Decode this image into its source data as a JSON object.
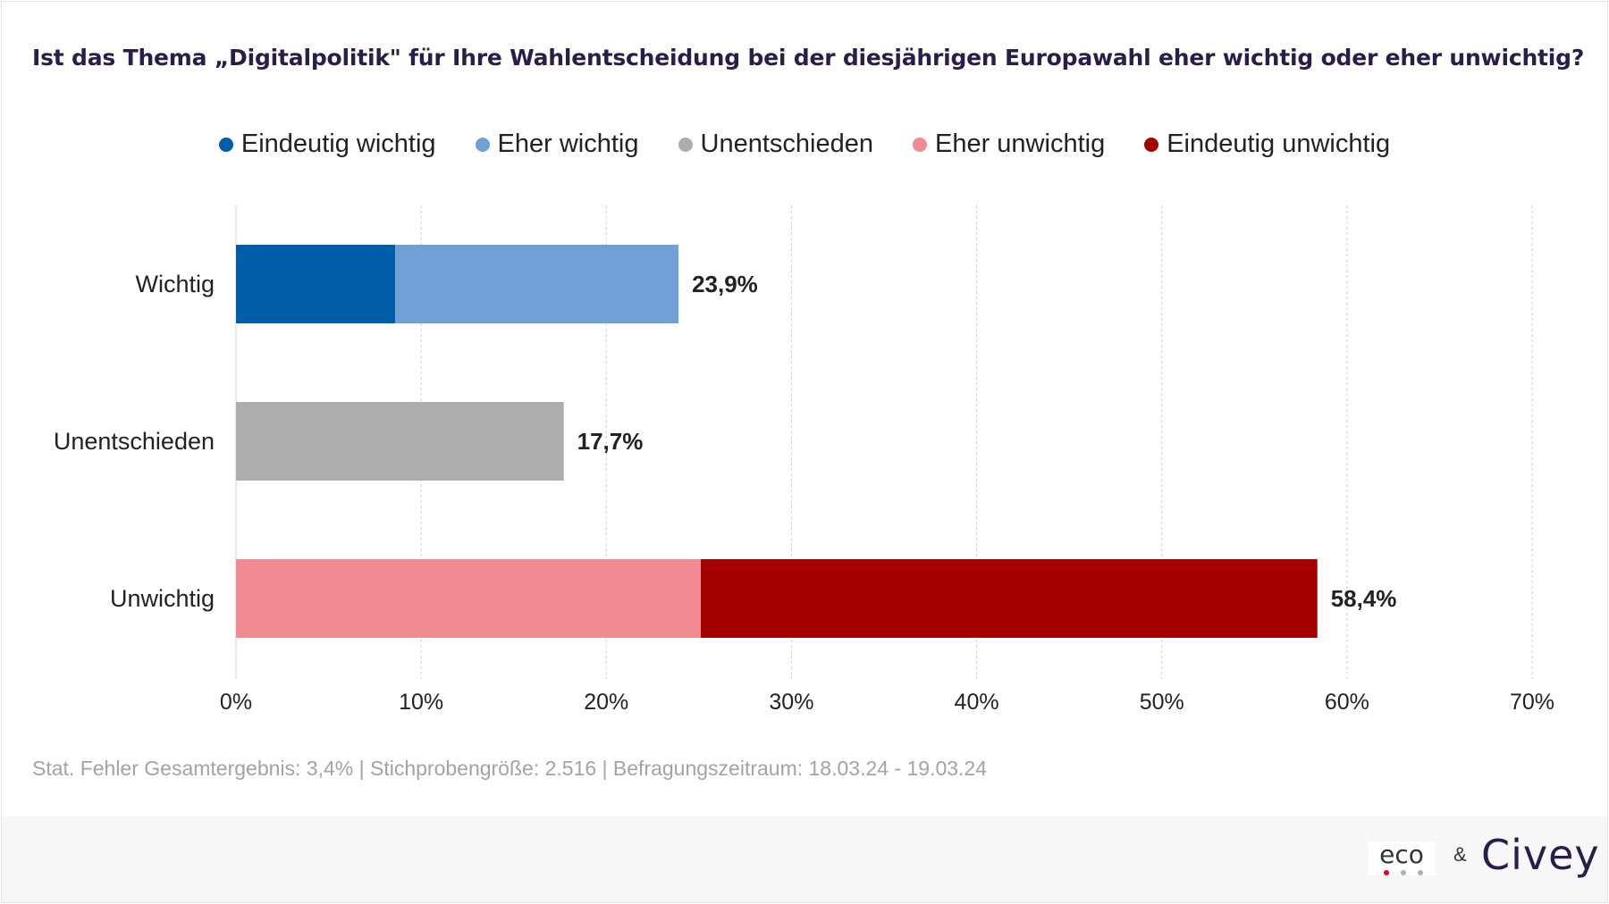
{
  "chart_data": {
    "type": "bar",
    "orientation": "horizontal",
    "stacked": true,
    "title": "Ist das Thema „Digitalpolitik\" für Ihre Wahlentscheidung bei der diesjährigen Europawahl eher wichtig oder eher unwichtig?",
    "categories": [
      "Wichtig",
      "Unentschieden",
      "Unwichtig"
    ],
    "series": [
      {
        "name": "Eindeutig wichtig",
        "color": "#005ea8",
        "values": [
          8.6,
          0,
          0
        ]
      },
      {
        "name": "Eher wichtig",
        "color": "#6fa1d6",
        "values": [
          15.3,
          0,
          0
        ]
      },
      {
        "name": "Unentschieden",
        "color": "#adadad",
        "values": [
          0,
          17.7,
          0
        ]
      },
      {
        "name": "Eher unwichtig",
        "color": "#f08b92",
        "values": [
          0,
          0,
          25.1
        ]
      },
      {
        "name": "Eindeutig unwichtig",
        "color": "#a50000",
        "values": [
          0,
          0,
          33.3
        ]
      }
    ],
    "totals": [
      "23,9%",
      "17,7%",
      "58,4%"
    ],
    "xlim": [
      0,
      70
    ],
    "xticks": [
      0,
      10,
      20,
      30,
      40,
      50,
      60,
      70
    ],
    "xtick_labels": [
      "0%",
      "10%",
      "20%",
      "30%",
      "40%",
      "50%",
      "60%",
      "70%"
    ],
    "grid": "vertical dashed",
    "legend_position": "top"
  },
  "footnote": "Stat. Fehler Gesamtergebnis: 3,4% | Stichprobengröße: 2.516 | Befragungszeitraum: 18.03.24 - 19.03.24",
  "logos": {
    "eco": "eco",
    "ampersand": "&",
    "civey": "Civey",
    "eco_dot_colors": [
      "#e2001a",
      "#b0b0b0",
      "#b0b0b0"
    ]
  }
}
